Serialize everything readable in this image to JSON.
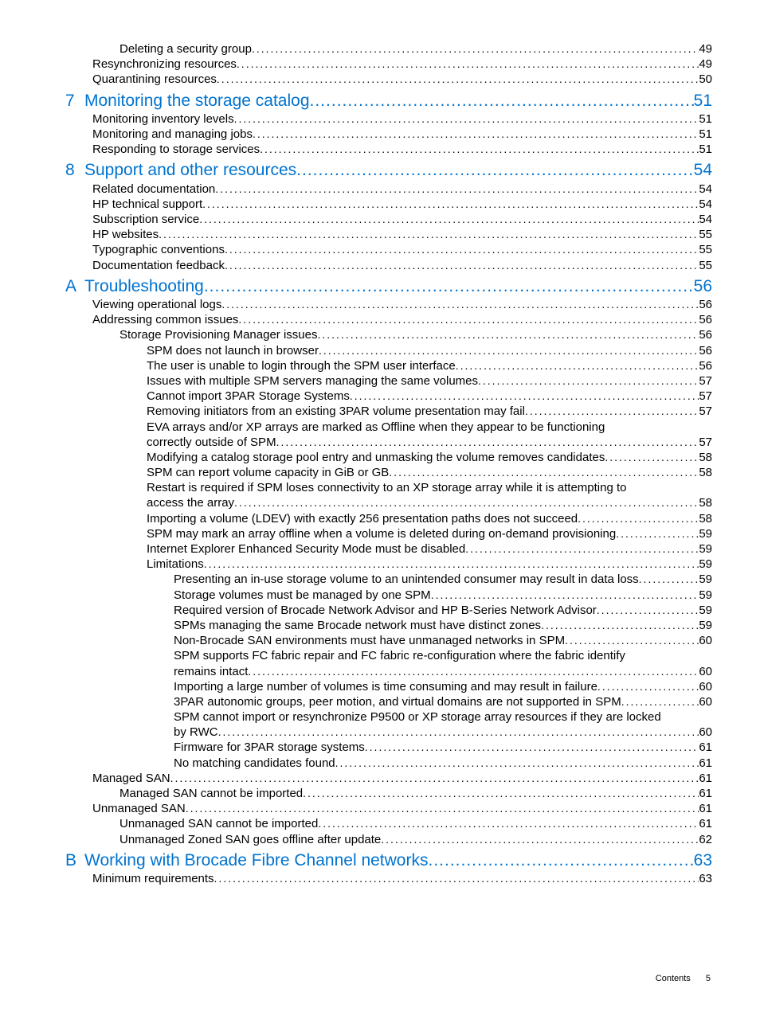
{
  "colors": {
    "link": "#0073cf",
    "text": "#000000",
    "bg": "#ffffff"
  },
  "font_sizes": {
    "chapter": 21,
    "entry": 15,
    "footer": 11
  },
  "footer": {
    "label": "Contents",
    "page": "5"
  },
  "entries": [
    {
      "level": 2,
      "title": "Deleting a security group",
      "page": "49"
    },
    {
      "level": 1,
      "title": "Resynchronizing resources",
      "page": "49"
    },
    {
      "level": 1,
      "title": "Quarantining resources",
      "page": "50"
    },
    {
      "level": 0,
      "num": "7",
      "title": "Monitoring the storage catalog",
      "page": "51"
    },
    {
      "level": 1,
      "title": "Monitoring inventory levels",
      "page": "51"
    },
    {
      "level": 1,
      "title": "Monitoring and managing jobs",
      "page": "51"
    },
    {
      "level": 1,
      "title": "Responding to storage services",
      "page": "51"
    },
    {
      "level": 0,
      "num": "8",
      "title": "Support and other resources",
      "page": "54"
    },
    {
      "level": 1,
      "title": "Related documentation",
      "page": "54"
    },
    {
      "level": 1,
      "title": "HP technical support",
      "page": "54"
    },
    {
      "level": 1,
      "title": "Subscription service",
      "page": "54"
    },
    {
      "level": 1,
      "title": "HP websites",
      "page": "55"
    },
    {
      "level": 1,
      "title": "Typographic conventions",
      "page": "55"
    },
    {
      "level": 1,
      "title": "Documentation feedback",
      "page": "55"
    },
    {
      "level": 0,
      "num": "A",
      "title": "Troubleshooting",
      "page": "56"
    },
    {
      "level": 1,
      "title": "Viewing operational logs",
      "page": "56"
    },
    {
      "level": 1,
      "title": "Addressing common issues",
      "page": "56"
    },
    {
      "level": 2,
      "title": "Storage Provisioning Manager issues",
      "page": "56"
    },
    {
      "level": 3,
      "title": "SPM does not launch in browser",
      "page": "56"
    },
    {
      "level": 3,
      "title": "The user is unable to login through the SPM user interface",
      "page": "56"
    },
    {
      "level": 3,
      "title": "Issues with multiple SPM servers managing the same volumes",
      "page": "57"
    },
    {
      "level": 3,
      "title": "Cannot import 3PAR Storage Systems",
      "page": "57"
    },
    {
      "level": 3,
      "title": "Removing initiators from an existing 3PAR volume presentation may fail",
      "page": "57"
    },
    {
      "level": 3,
      "wrap": true,
      "title": "EVA arrays and/or XP arrays are marked as Offline when they appear to be functioning correctly outside of SPM",
      "page": "57"
    },
    {
      "level": 3,
      "title": "Modifying a catalog storage pool entry and unmasking the volume removes candidates",
      "page": "58"
    },
    {
      "level": 3,
      "title": "SPM can report volume capacity in GiB or GB",
      "page": "58"
    },
    {
      "level": 3,
      "wrap": true,
      "title": "Restart is required if SPM loses connectivity to an XP storage array while it is attempting to access the array ",
      "page": "58"
    },
    {
      "level": 3,
      "title": "Importing a volume (LDEV) with exactly 256 presentation paths does not succeed",
      "page": "58"
    },
    {
      "level": 3,
      "title": "SPM may mark an array offline when a volume is deleted during on-demand provisioning",
      "page": "59"
    },
    {
      "level": 3,
      "title": "Internet Explorer Enhanced Security Mode must be disabled",
      "page": "59"
    },
    {
      "level": 3,
      "title": "Limitations",
      "page": "59"
    },
    {
      "level": 4,
      "title": "Presenting an in-use storage volume to an unintended consumer may result in data loss",
      "page": "59"
    },
    {
      "level": 4,
      "title": "Storage volumes must be managed by one SPM",
      "page": "59"
    },
    {
      "level": 4,
      "title": "Required version of Brocade Network Advisor and HP B-Series Network Advisor",
      "page": "59"
    },
    {
      "level": 4,
      "title": "SPMs managing the same Brocade network must have distinct zones",
      "page": "59"
    },
    {
      "level": 4,
      "title": "Non-Brocade SAN environments must have unmanaged networks in SPM",
      "page": "60"
    },
    {
      "level": 4,
      "wrap": true,
      "title": "SPM supports FC fabric repair and FC fabric re-configuration where the fabric identify remains intact",
      "page": "60"
    },
    {
      "level": 4,
      "title": "Importing a large number of volumes is time consuming and may result in failure",
      "page": "60"
    },
    {
      "level": 4,
      "title": "3PAR autonomic groups, peer motion, and virtual domains are not supported in SPM",
      "page": "60"
    },
    {
      "level": 4,
      "wrap": true,
      "title": "SPM cannot import or resynchronize P9500 or XP storage array resources if they are locked by RWC",
      "page": "60"
    },
    {
      "level": 4,
      "title": "Firmware for 3PAR storage systems",
      "page": "61"
    },
    {
      "level": 4,
      "title": "No matching candidates found",
      "page": "61"
    },
    {
      "level": 1,
      "title": "Managed SAN",
      "page": "61"
    },
    {
      "level": 2,
      "title": "Managed SAN cannot be imported",
      "page": "61"
    },
    {
      "level": 1,
      "title": "Unmanaged SAN",
      "page": "61"
    },
    {
      "level": 2,
      "title": "Unmanaged SAN cannot be imported",
      "page": "61"
    },
    {
      "level": 2,
      "title": "Unmanaged Zoned SAN goes offline after update",
      "page": "62"
    },
    {
      "level": 0,
      "num": "B",
      "title": "Working with Brocade Fibre Channel networks",
      "page": "63"
    },
    {
      "level": 1,
      "title": "Minimum requirements",
      "page": "63"
    }
  ]
}
